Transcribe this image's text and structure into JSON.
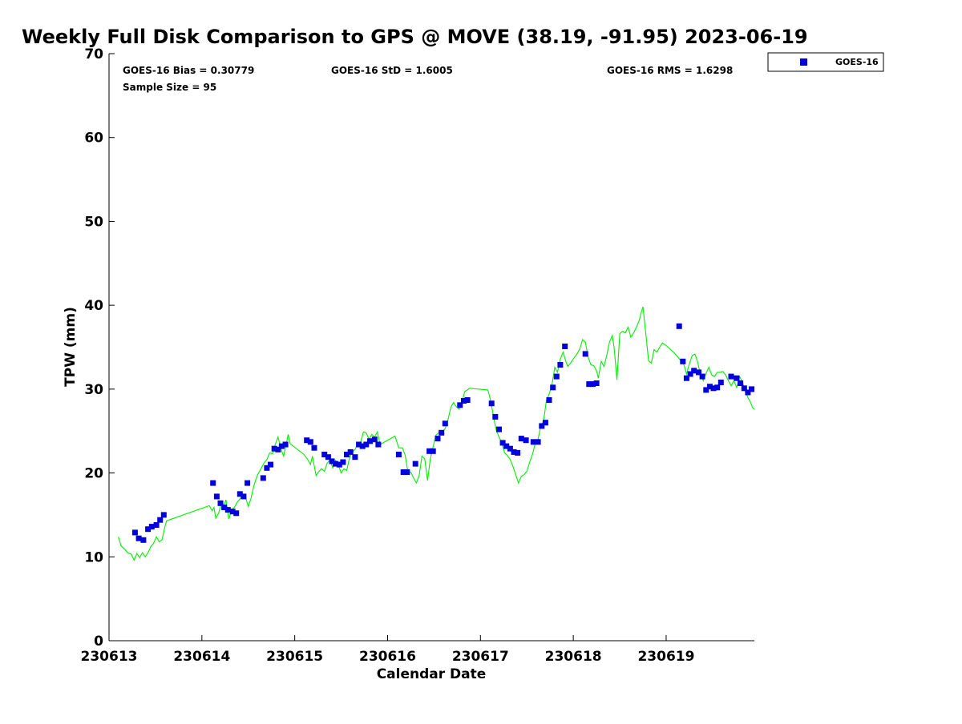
{
  "chart_data": {
    "type": "scatter",
    "title": "Weekly Full Disk Comparison to GPS @ MOVE (38.19, -91.95) 2023-06-19",
    "xlabel": "Calendar Date",
    "ylabel": "TPW (mm)",
    "x_tick_labels": [
      "230613",
      "230614",
      "230615",
      "230616",
      "230617",
      "230618",
      "230619"
    ],
    "y_ticks": [
      0,
      10,
      20,
      30,
      40,
      50,
      60,
      70
    ],
    "xlim_days": [
      13.0,
      19.95
    ],
    "ylim": [
      0,
      70
    ],
    "grid": false,
    "legend_position": "top-right",
    "stats": {
      "bias": "GOES-16 Bias = 0.30779",
      "std": "GOES-16 StD = 1.6005",
      "rms": "GOES-16 RMS = 1.6298",
      "sample": "Sample Size = 95"
    },
    "series": [
      {
        "name": "GOES-16",
        "marker": "square",
        "color": "#0000dd",
        "points": [
          [
            13.28,
            12.9
          ],
          [
            13.32,
            12.2
          ],
          [
            13.37,
            12.0
          ],
          [
            13.42,
            13.3
          ],
          [
            13.46,
            13.6
          ],
          [
            13.51,
            13.8
          ],
          [
            13.55,
            14.4
          ],
          [
            13.59,
            15.0
          ],
          [
            14.12,
            18.8
          ],
          [
            14.16,
            17.2
          ],
          [
            14.2,
            16.4
          ],
          [
            14.24,
            15.9
          ],
          [
            14.28,
            15.6
          ],
          [
            14.33,
            15.4
          ],
          [
            14.37,
            15.2
          ],
          [
            14.41,
            17.5
          ],
          [
            14.45,
            17.2
          ],
          [
            14.49,
            18.8
          ],
          [
            14.66,
            19.4
          ],
          [
            14.7,
            20.6
          ],
          [
            14.74,
            21.0
          ],
          [
            14.78,
            22.9
          ],
          [
            14.82,
            22.8
          ],
          [
            14.86,
            23.2
          ],
          [
            14.9,
            23.4
          ],
          [
            15.13,
            23.9
          ],
          [
            15.17,
            23.7
          ],
          [
            15.21,
            23.0
          ],
          [
            15.32,
            22.2
          ],
          [
            15.36,
            21.9
          ],
          [
            15.4,
            21.4
          ],
          [
            15.44,
            21.1
          ],
          [
            15.48,
            21.0
          ],
          [
            15.52,
            21.3
          ],
          [
            15.56,
            22.2
          ],
          [
            15.6,
            22.5
          ],
          [
            15.65,
            21.9
          ],
          [
            15.69,
            23.4
          ],
          [
            15.73,
            23.2
          ],
          [
            15.77,
            23.4
          ],
          [
            15.81,
            23.8
          ],
          [
            15.86,
            24.0
          ],
          [
            15.9,
            23.4
          ],
          [
            16.12,
            22.2
          ],
          [
            16.17,
            20.1
          ],
          [
            16.21,
            20.1
          ],
          [
            16.3,
            21.1
          ],
          [
            16.45,
            22.6
          ],
          [
            16.49,
            22.6
          ],
          [
            16.54,
            24.1
          ],
          [
            16.58,
            24.8
          ],
          [
            16.62,
            25.9
          ],
          [
            16.78,
            28.1
          ],
          [
            16.82,
            28.6
          ],
          [
            16.86,
            28.7
          ],
          [
            17.12,
            28.3
          ],
          [
            17.16,
            26.7
          ],
          [
            17.2,
            25.2
          ],
          [
            17.24,
            23.6
          ],
          [
            17.28,
            23.2
          ],
          [
            17.32,
            22.9
          ],
          [
            17.36,
            22.5
          ],
          [
            17.4,
            22.4
          ],
          [
            17.44,
            24.1
          ],
          [
            17.49,
            23.9
          ],
          [
            17.57,
            23.7
          ],
          [
            17.62,
            23.7
          ],
          [
            17.66,
            25.6
          ],
          [
            17.7,
            26.0
          ],
          [
            17.74,
            28.7
          ],
          [
            17.78,
            30.2
          ],
          [
            17.82,
            31.5
          ],
          [
            17.86,
            32.9
          ],
          [
            17.91,
            35.1
          ],
          [
            18.13,
            34.2
          ],
          [
            18.17,
            30.6
          ],
          [
            18.21,
            30.6
          ],
          [
            18.25,
            30.7
          ],
          [
            19.14,
            37.5
          ],
          [
            19.18,
            33.3
          ],
          [
            19.22,
            31.3
          ],
          [
            19.26,
            31.8
          ],
          [
            19.3,
            32.2
          ],
          [
            19.35,
            32.0
          ],
          [
            19.39,
            31.5
          ],
          [
            19.43,
            29.9
          ],
          [
            19.47,
            30.3
          ],
          [
            19.51,
            30.1
          ],
          [
            19.55,
            30.2
          ],
          [
            19.59,
            30.8
          ],
          [
            19.7,
            31.5
          ],
          [
            19.76,
            31.3
          ],
          [
            19.8,
            30.7
          ],
          [
            19.84,
            30.1
          ],
          [
            19.88,
            29.6
          ],
          [
            19.92,
            30.0
          ]
        ]
      },
      {
        "marker": "line",
        "color": "#00ee00",
        "points": [
          [
            13.1,
            12.4
          ],
          [
            13.13,
            11.3
          ],
          [
            13.16,
            11.0
          ],
          [
            13.2,
            10.5
          ],
          [
            13.24,
            10.3
          ],
          [
            13.27,
            9.6
          ],
          [
            13.3,
            10.4
          ],
          [
            13.33,
            9.9
          ],
          [
            13.36,
            10.5
          ],
          [
            13.39,
            10.0
          ],
          [
            13.42,
            10.5
          ],
          [
            13.45,
            11.2
          ],
          [
            13.48,
            11.6
          ],
          [
            13.51,
            12.4
          ],
          [
            13.54,
            11.8
          ],
          [
            13.57,
            12.0
          ],
          [
            13.6,
            13.5
          ],
          [
            13.62,
            14.3
          ],
          [
            14.08,
            16.1
          ],
          [
            14.11,
            15.5
          ],
          [
            14.13,
            15.9
          ],
          [
            14.15,
            14.6
          ],
          [
            14.18,
            15.2
          ],
          [
            14.21,
            16.4
          ],
          [
            14.24,
            16.2
          ],
          [
            14.26,
            16.8
          ],
          [
            14.29,
            14.5
          ],
          [
            14.32,
            15.6
          ],
          [
            14.35,
            15.9
          ],
          [
            14.38,
            16.5
          ],
          [
            14.41,
            16.9
          ],
          [
            14.44,
            17.3
          ],
          [
            14.47,
            17.1
          ],
          [
            14.5,
            16.0
          ],
          [
            14.53,
            17.0
          ],
          [
            14.56,
            18.5
          ],
          [
            14.6,
            19.8
          ],
          [
            14.64,
            20.6
          ],
          [
            14.67,
            21.2
          ],
          [
            14.7,
            21.6
          ],
          [
            14.73,
            22.4
          ],
          [
            14.76,
            22.3
          ],
          [
            14.79,
            23.4
          ],
          [
            14.82,
            24.3
          ],
          [
            14.85,
            22.9
          ],
          [
            14.88,
            22.0
          ],
          [
            14.91,
            23.5
          ],
          [
            14.93,
            24.6
          ],
          [
            14.95,
            23.5
          ],
          [
            15.1,
            22.2
          ],
          [
            15.14,
            21.6
          ],
          [
            15.17,
            21.0
          ],
          [
            15.19,
            22.0
          ],
          [
            15.23,
            19.7
          ],
          [
            15.26,
            20.2
          ],
          [
            15.29,
            20.5
          ],
          [
            15.32,
            20.2
          ],
          [
            15.35,
            21.2
          ],
          [
            15.38,
            21.5
          ],
          [
            15.41,
            20.6
          ],
          [
            15.44,
            21.5
          ],
          [
            15.47,
            20.9
          ],
          [
            15.5,
            20.0
          ],
          [
            15.53,
            20.5
          ],
          [
            15.56,
            20.3
          ],
          [
            15.59,
            21.8
          ],
          [
            15.62,
            22.5
          ],
          [
            15.65,
            22.8
          ],
          [
            15.68,
            23.6
          ],
          [
            15.71,
            23.7
          ],
          [
            15.74,
            24.9
          ],
          [
            15.77,
            24.8
          ],
          [
            15.8,
            24.0
          ],
          [
            15.83,
            24.6
          ],
          [
            15.86,
            24.3
          ],
          [
            15.89,
            24.9
          ],
          [
            15.92,
            23.4
          ],
          [
            16.08,
            24.4
          ],
          [
            16.12,
            23.0
          ],
          [
            16.16,
            23.0
          ],
          [
            16.19,
            22.1
          ],
          [
            16.22,
            20.0
          ],
          [
            16.25,
            20.1
          ],
          [
            16.28,
            19.4
          ],
          [
            16.31,
            18.8
          ],
          [
            16.34,
            19.7
          ],
          [
            16.37,
            22.0
          ],
          [
            16.4,
            21.7
          ],
          [
            16.43,
            19.1
          ],
          [
            16.46,
            21.7
          ],
          [
            16.49,
            23.1
          ],
          [
            16.52,
            24.5
          ],
          [
            16.55,
            24.8
          ],
          [
            16.58,
            24.8
          ],
          [
            16.62,
            25.3
          ],
          [
            16.65,
            26.3
          ],
          [
            16.68,
            27.8
          ],
          [
            16.71,
            28.4
          ],
          [
            16.74,
            27.9
          ],
          [
            16.77,
            27.6
          ],
          [
            16.8,
            28.3
          ],
          [
            16.83,
            29.7
          ],
          [
            16.86,
            29.9
          ],
          [
            16.88,
            30.1
          ],
          [
            17.08,
            29.9
          ],
          [
            17.11,
            28.6
          ],
          [
            17.14,
            26.8
          ],
          [
            17.17,
            25.1
          ],
          [
            17.2,
            24.3
          ],
          [
            17.23,
            23.6
          ],
          [
            17.26,
            22.4
          ],
          [
            17.29,
            22.1
          ],
          [
            17.32,
            21.6
          ],
          [
            17.35,
            20.8
          ],
          [
            17.38,
            19.8
          ],
          [
            17.41,
            18.8
          ],
          [
            17.44,
            19.6
          ],
          [
            17.47,
            19.8
          ],
          [
            17.5,
            20.2
          ],
          [
            17.53,
            21.3
          ],
          [
            17.56,
            22.2
          ],
          [
            17.59,
            23.5
          ],
          [
            17.62,
            24.0
          ],
          [
            17.65,
            25.6
          ],
          [
            17.68,
            26.2
          ],
          [
            17.71,
            28.6
          ],
          [
            17.74,
            29.4
          ],
          [
            17.77,
            30.5
          ],
          [
            17.8,
            32.6
          ],
          [
            17.83,
            32.0
          ],
          [
            17.86,
            33.6
          ],
          [
            17.89,
            34.4
          ],
          [
            17.92,
            33.3
          ],
          [
            17.94,
            32.7
          ],
          [
            17.97,
            33.1
          ],
          [
            18.0,
            33.6
          ],
          [
            18.04,
            34.2
          ],
          [
            18.07,
            34.8
          ],
          [
            18.1,
            35.9
          ],
          [
            18.13,
            35.6
          ],
          [
            18.16,
            33.8
          ],
          [
            18.19,
            32.9
          ],
          [
            18.22,
            32.8
          ],
          [
            18.25,
            32.2
          ],
          [
            18.27,
            31.3
          ],
          [
            18.3,
            33.3
          ],
          [
            18.33,
            32.7
          ],
          [
            18.36,
            34.0
          ],
          [
            18.39,
            35.6
          ],
          [
            18.42,
            36.4
          ],
          [
            18.44,
            34.9
          ],
          [
            18.47,
            31.1
          ],
          [
            18.5,
            36.6
          ],
          [
            18.53,
            36.9
          ],
          [
            18.56,
            36.7
          ],
          [
            18.59,
            37.4
          ],
          [
            18.62,
            36.2
          ],
          [
            18.65,
            36.7
          ],
          [
            18.68,
            37.4
          ],
          [
            18.71,
            38.2
          ],
          [
            18.73,
            39.1
          ],
          [
            18.75,
            39.8
          ],
          [
            18.78,
            36.7
          ],
          [
            18.81,
            33.4
          ],
          [
            18.84,
            33.1
          ],
          [
            18.87,
            34.7
          ],
          [
            18.9,
            34.4
          ],
          [
            18.93,
            35.0
          ],
          [
            18.96,
            35.5
          ],
          [
            19.0,
            35.2
          ],
          [
            19.04,
            34.8
          ],
          [
            19.08,
            34.4
          ],
          [
            19.12,
            33.9
          ],
          [
            19.15,
            33.5
          ],
          [
            19.18,
            33.2
          ],
          [
            19.2,
            32.6
          ],
          [
            19.22,
            31.8
          ],
          [
            19.25,
            33.0
          ],
          [
            19.28,
            34.0
          ],
          [
            19.31,
            34.2
          ],
          [
            19.34,
            33.2
          ],
          [
            19.37,
            31.7
          ],
          [
            19.4,
            31.0
          ],
          [
            19.43,
            31.9
          ],
          [
            19.46,
            32.6
          ],
          [
            19.49,
            31.7
          ],
          [
            19.52,
            31.5
          ],
          [
            19.55,
            32.0
          ],
          [
            19.58,
            32.0
          ],
          [
            19.61,
            32.1
          ],
          [
            19.64,
            31.7
          ],
          [
            19.67,
            31.0
          ],
          [
            19.7,
            30.4
          ],
          [
            19.73,
            31.0
          ],
          [
            19.76,
            30.2
          ],
          [
            19.79,
            31.5
          ],
          [
            19.82,
            30.9
          ],
          [
            19.85,
            29.8
          ],
          [
            19.88,
            29.0
          ],
          [
            19.91,
            28.4
          ],
          [
            19.93,
            27.8
          ],
          [
            19.95,
            27.6
          ]
        ]
      }
    ]
  }
}
